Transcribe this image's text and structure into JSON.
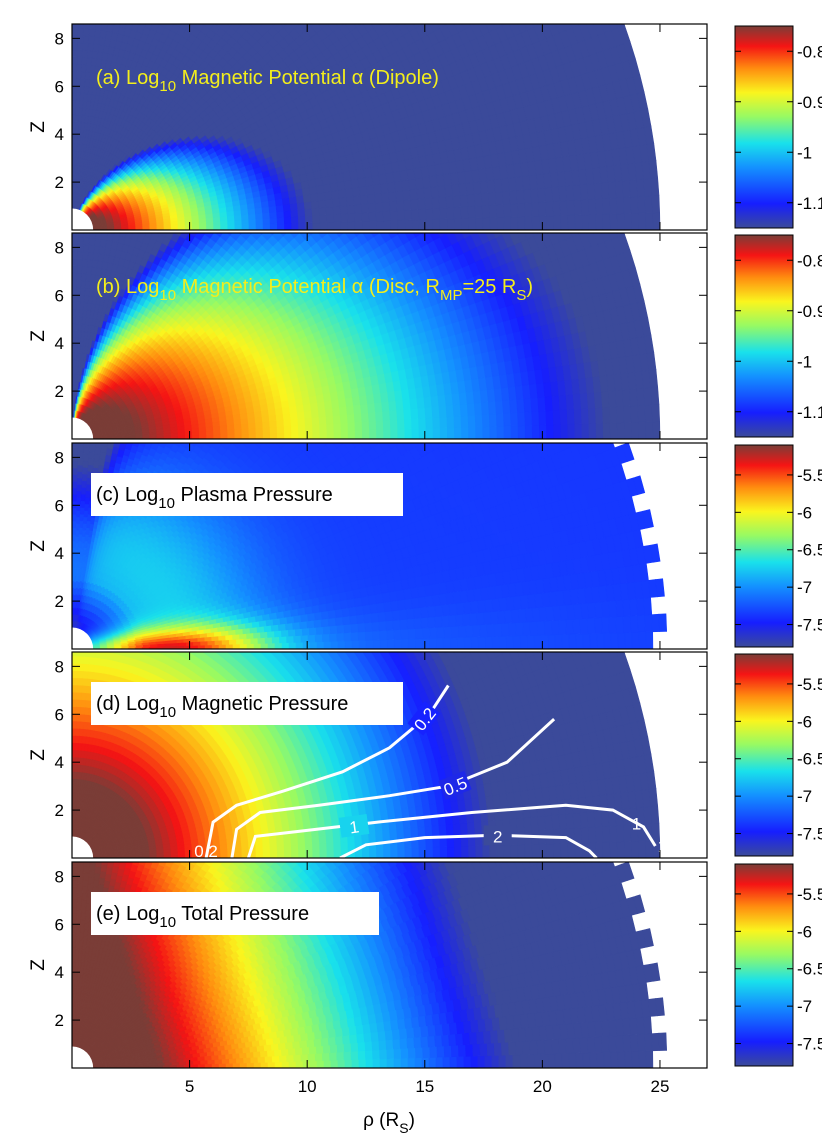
{
  "figure": {
    "xlabel": "ρ (R",
    "xlabel_sub": "S",
    "xlabel_close": ")",
    "ylabel": "Z",
    "colors": {
      "low": "#3b4a9a",
      "high": "#7a3d37",
      "title_text_a_b": "#f3ee1c",
      "title_text_c_e": "#000000",
      "contour": "#ffffff"
    }
  },
  "chart_data": [
    {
      "id": "a",
      "type": "heatmap",
      "title": {
        "prefix": "(a) Log",
        "sub": "10",
        "main": " Magnetic Potential α (Dipole)"
      },
      "title_style": "yellow-on-plot",
      "field": "dipole",
      "xlim": [
        0,
        27
      ],
      "ylim": [
        0,
        8.6
      ],
      "xticks": [
        5,
        10,
        15,
        20,
        25
      ],
      "xtick_labels": [
        "",
        "",
        "",
        "",
        ""
      ],
      "yticks": [
        2,
        4,
        6,
        8
      ],
      "ytick_labels": [
        "2",
        "4",
        "6",
        "8"
      ],
      "domain_radius_max": 25,
      "colorbar": {
        "ticks": [
          -0.8,
          -0.9,
          -1,
          -1.1
        ],
        "labels": [
          "-0.8",
          "-0.9",
          "-1",
          "-1.1"
        ],
        "range": [
          -1.15,
          -0.75
        ]
      }
    },
    {
      "id": "b",
      "type": "heatmap",
      "title": {
        "prefix": "(b) Log",
        "sub": "10",
        "main": " Magnetic Potential α (Disc, R",
        "sub2": "MP",
        "main2": "=25 R",
        "sub3": "S",
        "main3": ")"
      },
      "title_style": "yellow-on-plot",
      "field": "disc",
      "xlim": [
        0,
        27
      ],
      "ylim": [
        0,
        8.6
      ],
      "xticks": [
        5,
        10,
        15,
        20,
        25
      ],
      "xtick_labels": [
        "",
        "",
        "",
        "",
        ""
      ],
      "yticks": [
        2,
        4,
        6,
        8
      ],
      "ytick_labels": [
        "2",
        "4",
        "6",
        "8"
      ],
      "domain_radius_max": 25,
      "colorbar": {
        "ticks": [
          -0.8,
          -0.9,
          -1,
          -1.1
        ],
        "labels": [
          "-0.8",
          "-0.9",
          "-1",
          "-1.1"
        ],
        "range": [
          -1.15,
          -0.75
        ]
      }
    },
    {
      "id": "c",
      "type": "heatmap",
      "title": {
        "prefix": "(c) Log",
        "sub": "10",
        "main": " Plasma Pressure"
      },
      "title_style": "boxed",
      "field": "plasma",
      "xlim": [
        0,
        27
      ],
      "ylim": [
        0,
        8.6
      ],
      "xticks": [
        5,
        10,
        15,
        20,
        25
      ],
      "xtick_labels": [
        "",
        "",
        "",
        "",
        ""
      ],
      "yticks": [
        2,
        4,
        6,
        8
      ],
      "ytick_labels": [
        "2",
        "4",
        "6",
        "8"
      ],
      "domain_radius_max": 25,
      "colorbar": {
        "ticks": [
          -5.5,
          -6,
          -6.5,
          -7,
          -7.5
        ],
        "labels": [
          "-5.5",
          "-6",
          "-6.5",
          "-7",
          "-7.5"
        ],
        "range": [
          -7.8,
          -5.1
        ]
      }
    },
    {
      "id": "d",
      "type": "heatmap",
      "title": {
        "prefix": "(d) Log",
        "sub": "10",
        "main": " Magnetic Pressure"
      },
      "title_style": "boxed",
      "field": "magnetic",
      "xlim": [
        0,
        27
      ],
      "ylim": [
        0,
        8.6
      ],
      "xticks": [
        5,
        10,
        15,
        20,
        25
      ],
      "xtick_labels": [
        "",
        "",
        "",
        "",
        ""
      ],
      "yticks": [
        2,
        4,
        6,
        8
      ],
      "ytick_labels": [
        "2",
        "4",
        "6",
        "8"
      ],
      "domain_radius_max": 25,
      "colorbar": {
        "ticks": [
          -5.5,
          -6,
          -6.5,
          -7,
          -7.5
        ],
        "labels": [
          "-5.5",
          "-6",
          "-6.5",
          "-7",
          "-7.5"
        ],
        "range": [
          -7.8,
          -5.1
        ]
      },
      "contours": [
        {
          "label": "0.2",
          "label_at": [
            15.0,
            5.8
          ],
          "label_angle": -52,
          "points": [
            [
              5.7,
              0.0
            ],
            [
              6.0,
              1.5
            ],
            [
              7.0,
              2.2
            ],
            [
              9.0,
              2.8
            ],
            [
              11.5,
              3.6
            ],
            [
              13.5,
              4.6
            ],
            [
              15.2,
              6.0
            ],
            [
              16.0,
              7.2
            ]
          ]
        },
        {
          "label": "0.5",
          "label_at": [
            16.3,
            3.0
          ],
          "label_angle": -22,
          "points": [
            [
              6.8,
              0.0
            ],
            [
              7.0,
              1.2
            ],
            [
              8.0,
              1.9
            ],
            [
              10.5,
              2.2
            ],
            [
              13.5,
              2.6
            ],
            [
              16.0,
              3.0
            ],
            [
              18.5,
              4.0
            ],
            [
              20.5,
              5.8
            ]
          ]
        },
        {
          "label": "1",
          "label_at": [
            12.0,
            1.3
          ],
          "label_angle": -8,
          "points": [
            [
              7.5,
              0.0
            ],
            [
              7.8,
              0.9
            ],
            [
              9.5,
              1.1
            ],
            [
              13.0,
              1.5
            ],
            [
              17.0,
              1.9
            ],
            [
              21.0,
              2.2
            ],
            [
              23.0,
              2.0
            ],
            [
              24.3,
              1.3
            ],
            [
              24.8,
              0.5
            ]
          ]
        },
        {
          "label": "2",
          "label_at": [
            18.1,
            0.9
          ],
          "label_angle": 0,
          "points": [
            [
              11.4,
              0.0
            ],
            [
              12.5,
              0.55
            ],
            [
              15.0,
              0.85
            ],
            [
              18.0,
              0.95
            ],
            [
              21.0,
              0.85
            ],
            [
              22.0,
              0.3
            ],
            [
              22.3,
              0.0
            ]
          ]
        }
      ],
      "contour_labels_edge": [
        {
          "label": "1",
          "at": [
            24.0,
            1.45
          ]
        },
        {
          "label": "1",
          "at": [
            25.1,
            0.5
          ]
        },
        {
          "label": "0.2",
          "at": [
            5.7,
            0.3
          ]
        }
      ]
    },
    {
      "id": "e",
      "type": "heatmap",
      "title": {
        "prefix": "(e) Log",
        "sub": "10",
        "main": " Total Pressure"
      },
      "title_style": "boxed",
      "field": "total",
      "xlim": [
        0,
        27
      ],
      "ylim": [
        0,
        8.6
      ],
      "xticks": [
        5,
        10,
        15,
        20,
        25
      ],
      "xtick_labels": [
        "5",
        "10",
        "15",
        "20",
        "25"
      ],
      "yticks": [
        2,
        4,
        6,
        8
      ],
      "ytick_labels": [
        "2",
        "4",
        "6",
        "8"
      ],
      "domain_radius_max": 25,
      "colorbar": {
        "ticks": [
          -5.5,
          -6,
          -6.5,
          -7,
          -7.5
        ],
        "labels": [
          "-5.5",
          "-6",
          "-6.5",
          "-7",
          "-7.5"
        ],
        "range": [
          -7.8,
          -5.1
        ]
      }
    }
  ]
}
